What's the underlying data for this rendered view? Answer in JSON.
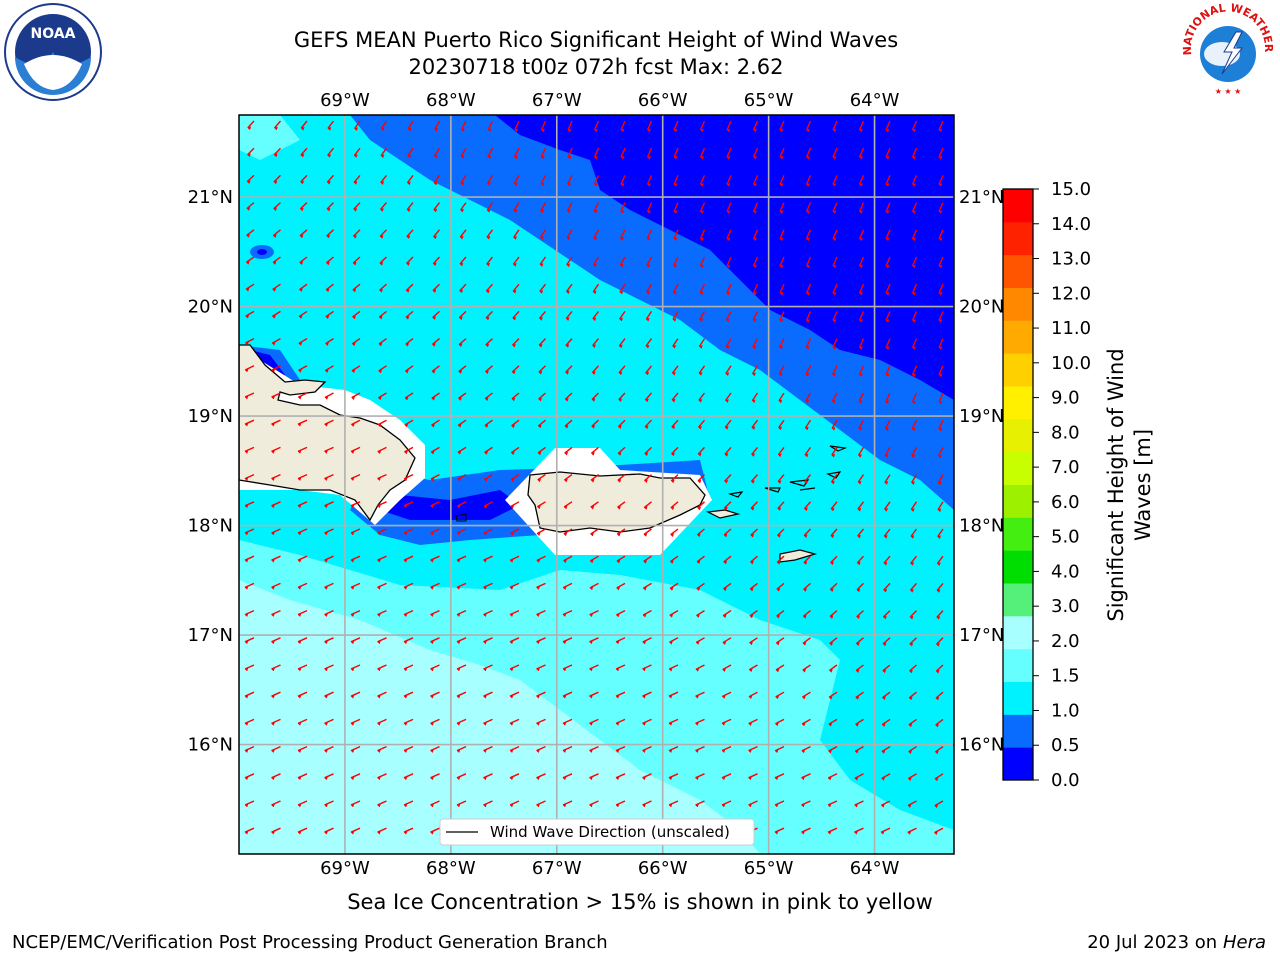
{
  "title": {
    "line1": "GEFS MEAN Puerto Rico Significant Height of Wind Waves",
    "line2": "20230718 t00z 072h fcst   Max: 2.62"
  },
  "axes": {
    "lon_labels": [
      "69°W",
      "68°W",
      "67°W",
      "66°W",
      "65°W",
      "64°W"
    ],
    "lat_labels": [
      "21°N",
      "20°N",
      "19°N",
      "18°N",
      "17°N",
      "16°N"
    ]
  },
  "legend": {
    "label": "Wind Wave Direction (unscaled)"
  },
  "colorbar": {
    "label_line1": "Significant Height of Wind",
    "label_line2": "Waves [m]",
    "ticks": [
      "0.0",
      "0.5",
      "1.0",
      "1.5",
      "2.0",
      "3.0",
      "4.0",
      "5.0",
      "6.0",
      "7.0",
      "8.0",
      "9.0",
      "10.0",
      "11.0",
      "12.0",
      "13.0",
      "14.0",
      "15.0"
    ],
    "colors": [
      "#0000ff",
      "#0a6cff",
      "#00f2ff",
      "#66ffff",
      "#a8ffff",
      "#55f07a",
      "#00dd00",
      "#44ee11",
      "#9cf000",
      "#c8ff00",
      "#e6f000",
      "#fff000",
      "#ffd000",
      "#ffaa00",
      "#ff8800",
      "#ff5500",
      "#ff2200",
      "#ff0000"
    ]
  },
  "note": "Sea Ice Concentration > 15% is shown in pink to yellow",
  "footer": {
    "left": "NCEP/EMC/Verification Post Processing Product Generation Branch",
    "date": "20 Jul 2023 on",
    "host": "Hera"
  },
  "logos": {
    "left": "NOAA",
    "right_text": "NATIONAL WEATHER SERVICE"
  },
  "map_data": {
    "extent": {
      "lon_min": -70.0,
      "lon_max": -63.25,
      "lat_min": 15.0,
      "lat_max": 21.75
    },
    "max_value": 2.62,
    "arrow_color": "#ff0000",
    "land_color": "#efecdc"
  }
}
